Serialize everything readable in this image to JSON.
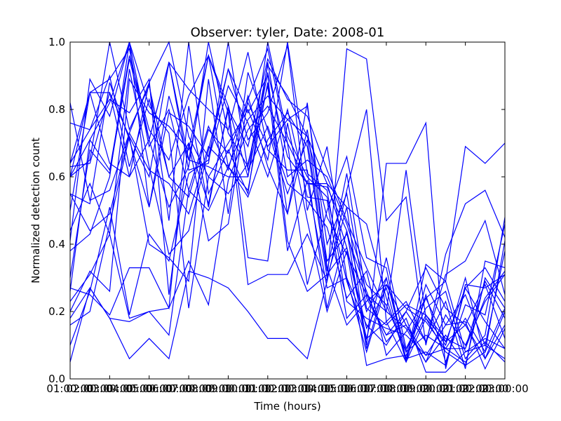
{
  "chart_data": {
    "type": "line",
    "title": "Observer: tyler, Date: 2008-01",
    "xlabel": "Time (hours)",
    "ylabel": "Normalized detection count",
    "xlim": [
      1,
      23
    ],
    "ylim": [
      0,
      1
    ],
    "x_ticks": [
      {
        "value": 1,
        "label": "01:00:00"
      },
      {
        "value": 3,
        "label": "03:00:00"
      },
      {
        "value": 5,
        "label": "05:00:00"
      },
      {
        "value": 7,
        "label": "07:00:00"
      },
      {
        "value": 9,
        "label": "09:00:00"
      },
      {
        "value": 11,
        "label": "11:00:00"
      },
      {
        "value": 13,
        "label": "13:00:00"
      },
      {
        "value": 15,
        "label": "15:00:00"
      },
      {
        "value": 17,
        "label": "17:00:00"
      },
      {
        "value": 19,
        "label": "19:00:00"
      },
      {
        "value": 21,
        "label": "21:00:00"
      },
      {
        "value": 23,
        "label": "23:00:00"
      }
    ],
    "x_overlap_labels": [
      {
        "value": 2,
        "label": "02:00:00"
      },
      {
        "value": 4,
        "label": "04:00:00"
      },
      {
        "value": 6,
        "label": "06:00:00"
      },
      {
        "value": 8,
        "label": "08:00:00"
      },
      {
        "value": 10,
        "label": "10:00:00"
      },
      {
        "value": 12,
        "label": "12:00:00"
      },
      {
        "value": 14,
        "label": "14:00:00"
      },
      {
        "value": 16,
        "label": "16:00:00"
      },
      {
        "value": 18,
        "label": "18:00:00"
      },
      {
        "value": 20,
        "label": "20:00:00"
      },
      {
        "value": 22,
        "label": "22:00:00"
      }
    ],
    "y_ticks": [
      {
        "value": 0.0,
        "label": "0.0"
      },
      {
        "value": 0.2,
        "label": "0.2"
      },
      {
        "value": 0.4,
        "label": "0.4"
      },
      {
        "value": 0.6,
        "label": "0.6"
      },
      {
        "value": 0.8,
        "label": "0.8"
      },
      {
        "value": 1.0,
        "label": "1.0"
      }
    ],
    "grid": false,
    "legend": "none",
    "line_color": "#0000ff",
    "x": [
      1,
      2,
      3,
      4,
      5,
      6,
      7,
      8,
      9,
      10,
      11,
      12,
      13,
      14,
      15,
      16,
      17,
      18,
      19,
      20,
      21,
      22,
      23
    ],
    "series": [
      {
        "values": [
          0.6,
          0.65,
          1.0,
          0.74,
          0.87,
          0.6,
          0.7,
          0.52,
          0.8,
          0.69,
          0.95,
          0.83,
          0.78,
          0.62,
          0.47,
          0.33,
          0.2,
          0.15,
          0.05,
          0.19,
          0.1,
          0.23,
          0.31
        ]
      },
      {
        "values": [
          0.41,
          0.89,
          0.78,
          1.0,
          0.71,
          0.51,
          0.63,
          1.0,
          0.73,
          0.63,
          0.93,
          0.84,
          0.72,
          0.48,
          0.37,
          0.25,
          0.13,
          0.16,
          0.07,
          0.09,
          0.05,
          0.11,
          0.05
        ]
      },
      {
        "values": [
          0.2,
          0.32,
          0.26,
          0.89,
          0.79,
          0.75,
          0.68,
          0.96,
          0.81,
          0.6,
          1.0,
          0.72,
          0.6,
          0.54,
          0.29,
          0.12,
          0.36,
          0.09,
          0.21,
          0.26,
          0.06,
          0.13,
          0.48
        ]
      },
      {
        "values": [
          0.76,
          0.74,
          0.9,
          0.63,
          0.83,
          0.6,
          0.54,
          0.74,
          0.67,
          0.82,
          0.69,
          0.77,
          0.81,
          0.4,
          0.55,
          0.21,
          0.16,
          0.22,
          0.19,
          0.12,
          0.09,
          0.29,
          0.18
        ]
      },
      {
        "values": [
          0.55,
          0.52,
          0.88,
          0.71,
          0.51,
          0.79,
          0.75,
          0.66,
          0.92,
          0.71,
          0.79,
          0.99,
          0.5,
          0.69,
          0.3,
          0.16,
          0.1,
          0.2,
          0.33,
          0.21,
          0.16,
          0.06,
          0.16
        ]
      },
      {
        "values": [
          0.82,
          0.53,
          0.56,
          0.73,
          0.88,
          0.47,
          1.0,
          0.55,
          0.68,
          0.55,
          0.94,
          0.6,
          0.65,
          0.6,
          0.46,
          0.28,
          0.22,
          0.08,
          0.24,
          0.29,
          0.08,
          0.12,
          0.09
        ]
      },
      {
        "values": [
          0.6,
          0.71,
          0.62,
          0.96,
          0.74,
          0.65,
          0.84,
          0.96,
          0.63,
          0.77,
          0.84,
          0.77,
          0.72,
          0.58,
          0.39,
          0.12,
          0.17,
          0.05,
          0.18,
          0.08,
          0.04,
          0.3,
          0.21
        ]
      },
      {
        "values": [
          0.3,
          0.68,
          0.61,
          0.95,
          0.71,
          0.94,
          0.62,
          0.64,
          1.0,
          0.62,
          0.75,
          0.58,
          0.53,
          0.45,
          0.24,
          0.32,
          0.07,
          0.14,
          0.24,
          0.11,
          0.27,
          0.17,
          0.09
        ]
      },
      {
        "values": [
          0.16,
          0.2,
          0.46,
          0.72,
          0.4,
          0.36,
          0.29,
          0.89,
          0.49,
          0.91,
          0.74,
          0.55,
          0.71,
          0.32,
          0.61,
          0.24,
          0.13,
          0.2,
          0.11,
          0.23,
          0.03,
          0.35,
          0.33
        ]
      },
      {
        "values": [
          0.64,
          0.85,
          0.64,
          0.6,
          0.71,
          0.94,
          0.86,
          0.8,
          0.74,
          0.97,
          0.68,
          0.62,
          0.62,
          0.21,
          0.44,
          0.2,
          0.3,
          0.06,
          0.28,
          0.16,
          0.25,
          0.1,
          0.38
        ]
      },
      {
        "values": [
          0.27,
          0.25,
          0.19,
          0.33,
          0.33,
          0.21,
          0.81,
          0.51,
          0.81,
          0.36,
          0.35,
          0.76,
          0.47,
          0.2,
          0.38,
          0.04,
          0.06,
          0.07,
          0.19,
          0.1,
          0.3,
          0.06,
          0.2
        ]
      },
      {
        "values": [
          0.05,
          0.27,
          0.18,
          0.17,
          0.2,
          0.13,
          0.56,
          0.75,
          0.62,
          0.84,
          0.63,
          0.49,
          0.82,
          0.33,
          0.16,
          0.23,
          0.28,
          0.16,
          0.05,
          0.13,
          0.04,
          0.08,
          0.21
        ]
      },
      {
        "values": [
          0.38,
          0.43,
          0.6,
          1.0,
          0.81,
          0.73,
          0.21,
          0.6,
          0.55,
          0.64,
          0.87,
          0.38,
          0.59,
          0.27,
          0.3,
          0.08,
          0.28,
          0.21,
          0.17,
          0.09,
          0.09,
          0.24,
          0.32
        ]
      },
      {
        "values": [
          0.1,
          0.26,
          0.51,
          0.19,
          0.43,
          0.35,
          0.61,
          0.65,
          0.87,
          0.76,
          0.6,
          0.8,
          0.54,
          0.53,
          0.18,
          0.25,
          0.2,
          0.62,
          0.18,
          0.11,
          0.16,
          0.28,
          0.12
        ]
      },
      {
        "values": [
          0.64,
          0.74,
          0.83,
          0.79,
          0.89,
          0.25,
          0.7,
          0.41,
          0.46,
          0.83,
          0.98,
          0.7,
          0.28,
          0.5,
          0.66,
          0.36,
          0.33,
          0.05,
          0.25,
          0.05,
          0.22,
          0.19,
          0.46
        ]
      },
      {
        "values": [
          0.26,
          0.71,
          0.82,
          1.0,
          0.51,
          0.84,
          0.65,
          0.96,
          0.79,
          0.28,
          0.31,
          0.31,
          0.43,
          0.29,
          0.98,
          0.95,
          0.47,
          0.54,
          0.1,
          0.37,
          0.52,
          0.56,
          0.42
        ]
      },
      {
        "values": [
          0.6,
          0.85,
          0.85,
          0.6,
          0.88,
          1.0,
          0.72,
          0.6,
          0.7,
          0.8,
          0.65,
          1.0,
          0.61,
          0.56,
          0.23,
          0.18,
          0.15,
          0.13,
          0.07,
          0.16,
          0.17,
          0.03,
          0.15
        ]
      },
      {
        "values": [
          0.5,
          0.85,
          0.89,
          0.98,
          0.69,
          0.8,
          0.56,
          0.5,
          0.63,
          0.56,
          0.88,
          0.49,
          0.74,
          0.35,
          0.43,
          0.26,
          0.11,
          0.18,
          0.02,
          0.02,
          0.08,
          0.1,
          0.06
        ]
      },
      {
        "values": [
          0.63,
          0.64,
          0.85,
          0.72,
          0.6,
          0.94,
          0.65,
          0.63,
          0.6,
          0.6,
          0.91,
          0.66,
          0.58,
          0.58,
          0.51,
          0.1,
          0.64,
          0.64,
          0.76,
          0.03,
          0.28,
          0.27,
          0.31
        ]
      },
      {
        "values": [
          0.23,
          0.31,
          0.43,
          0.18,
          0.2,
          0.21,
          0.35,
          0.22,
          0.59,
          0.74,
          0.81,
          0.7,
          0.58,
          0.57,
          0.44,
          0.09,
          0.3,
          0.08,
          0.13,
          0.09,
          0.18,
          0.08,
          0.41
        ]
      },
      {
        "values": [
          0.55,
          0.44,
          0.49,
          0.73,
          0.62,
          0.58,
          0.49,
          0.69,
          0.63,
          0.54,
          0.71,
          0.79,
          0.69,
          0.3,
          0.51,
          0.46,
          0.24,
          0.06,
          0.08,
          0.04,
          0.27,
          0.33,
          0.23
        ]
      },
      {
        "values": [
          0.44,
          0.58,
          0.43,
          0.92,
          0.63,
          0.37,
          0.44,
          0.68,
          0.92,
          0.79,
          0.9,
          0.41,
          0.26,
          0.31,
          0.39,
          0.15,
          0.27,
          0.05,
          0.34,
          0.29,
          0.69,
          0.64,
          0.7
        ]
      },
      {
        "values": [
          0.18,
          0.27,
          0.18,
          0.06,
          0.12,
          0.06,
          0.32,
          0.3,
          0.27,
          0.2,
          0.12,
          0.12,
          0.06,
          0.29,
          0.56,
          0.8,
          0.17,
          0.23,
          0.11,
          0.31,
          0.35,
          0.47,
          0.25
        ]
      }
    ]
  }
}
